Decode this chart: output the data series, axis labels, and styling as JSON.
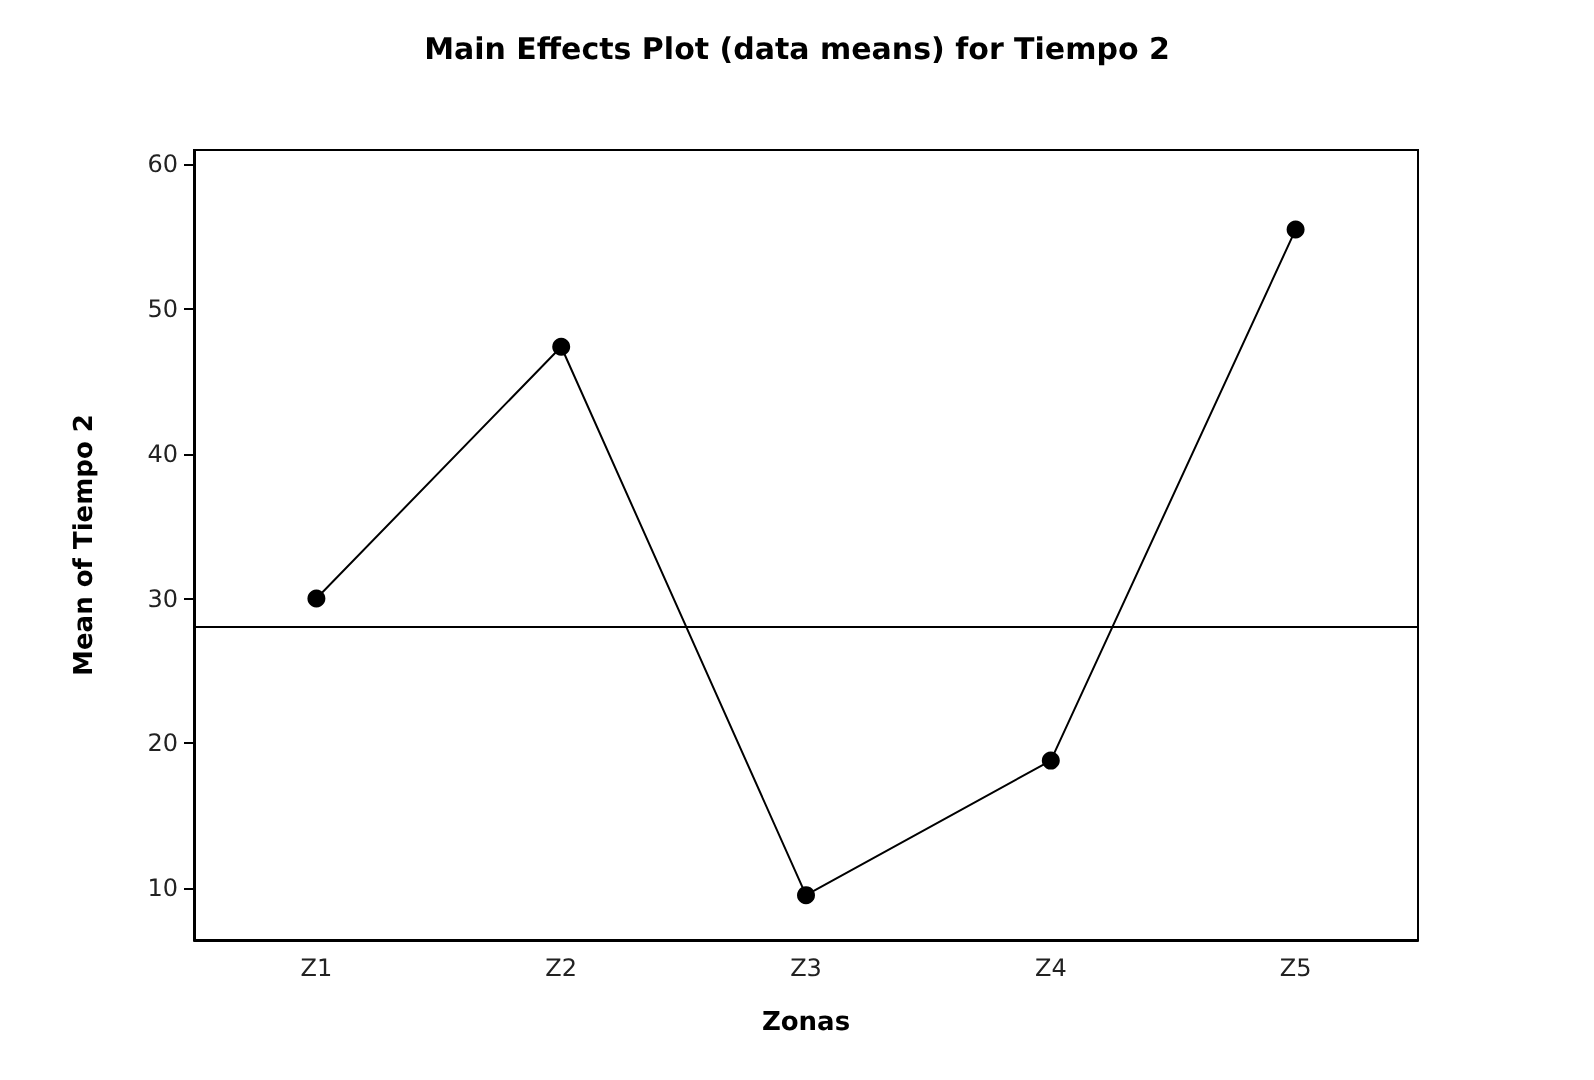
{
  "chart_data": {
    "type": "line",
    "title": "Main Effects Plot (data means) for Tiempo 2",
    "xlabel": "Zonas",
    "ylabel": "Mean of Tiempo 2",
    "categories": [
      "Z1",
      "Z2",
      "Z3",
      "Z4",
      "Z5"
    ],
    "series": [
      {
        "color": "#000000",
        "values": [
          30.0,
          47.4,
          9.5,
          18.8,
          55.5
        ]
      }
    ],
    "ylim": [
      6.4,
      61
    ],
    "yticks": [
      10,
      20,
      30,
      40,
      50,
      60
    ],
    "ref_lines": [
      {
        "axis": "y",
        "value": 28.1,
        "color": "#000000"
      }
    ],
    "marker": "circle",
    "line_style": "solid",
    "grid": false
  }
}
